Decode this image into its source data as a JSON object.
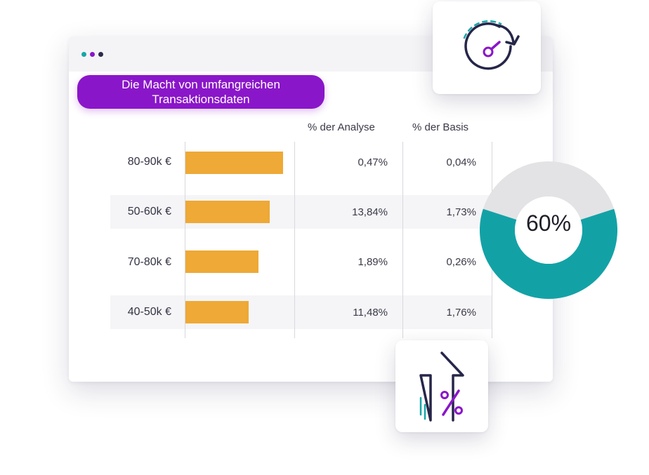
{
  "colors": {
    "accent_purple": "#8a16c9",
    "bar_orange": "#eea936",
    "donut_teal": "#12a2a6",
    "donut_gray": "#e3e3e5",
    "dot_teal": "#16a6a8",
    "dot_purple": "#8a16c9",
    "dot_dark": "#2a2a4a"
  },
  "pill": {
    "line1": "Die Macht von umfangreichen",
    "line2": "Transaktionsdaten"
  },
  "table": {
    "headers": {
      "analysis": "% der Analyse",
      "base": "% der Basis"
    },
    "rows": [
      {
        "label": "80-90k €",
        "bar_fraction": 1.0,
        "analysis": "0,47%",
        "base": "0,04%"
      },
      {
        "label": "50-60k €",
        "bar_fraction": 0.864,
        "analysis": "13,84%",
        "base": "1,73%"
      },
      {
        "label": "70-80k €",
        "bar_fraction": 0.75,
        "analysis": "1,89%",
        "base": "0,26%"
      },
      {
        "label": "40-50k €",
        "bar_fraction": 0.647,
        "analysis": "11,48%",
        "base": "1,76%"
      }
    ]
  },
  "donut": {
    "value": 60,
    "label": "60%"
  },
  "icons": {
    "speed": "speedometer-refresh-icon",
    "percent": "percent-up-arrow-icon"
  }
}
